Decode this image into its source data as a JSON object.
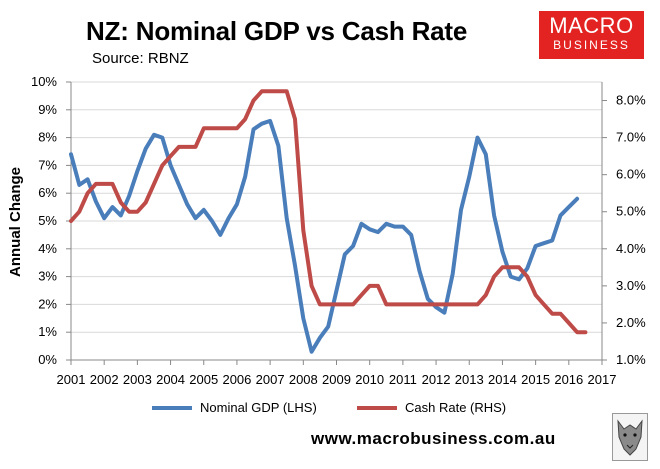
{
  "header": {
    "title": "NZ: Nominal GDP vs Cash Rate",
    "source": "Source: RBNZ"
  },
  "logo": {
    "line1": "MACRO",
    "line2": "BUSINESS",
    "bg_color": "#e32222"
  },
  "footer": {
    "website": "www.macrobusiness.com.au"
  },
  "colors": {
    "gdp": "#4a7ebb",
    "cash": "#be4b48",
    "grid": "#d9d9d9"
  },
  "chart_data": {
    "type": "line",
    "title": "NZ: Nominal GDP vs Cash Rate",
    "ylabel": "Annual Change",
    "xlim": [
      2001,
      2017
    ],
    "x_ticks": [
      "2001",
      "2002",
      "2003",
      "2004",
      "2005",
      "2006",
      "2007",
      "2008",
      "2009",
      "2010",
      "2011",
      "2012",
      "2013",
      "2014",
      "2015",
      "2016",
      "2017"
    ],
    "y_left": {
      "lim": [
        0,
        10
      ],
      "ticks": [
        "0%",
        "1%",
        "2%",
        "3%",
        "4%",
        "5%",
        "6%",
        "7%",
        "8%",
        "9%",
        "10%"
      ]
    },
    "y_right": {
      "lim": [
        1.0,
        8.5
      ],
      "ticks": [
        "1.0%",
        "2.0%",
        "3.0%",
        "4.0%",
        "5.0%",
        "6.0%",
        "7.0%",
        "8.0%"
      ]
    },
    "grid": true,
    "legend_position": "bottom",
    "series": [
      {
        "name": "Nominal GDP (LHS)",
        "axis": "left",
        "x": [
          2001.0,
          2001.25,
          2001.5,
          2001.75,
          2002.0,
          2002.25,
          2002.5,
          2002.75,
          2003.0,
          2003.25,
          2003.5,
          2003.75,
          2004.0,
          2004.25,
          2004.5,
          2004.75,
          2005.0,
          2005.25,
          2005.5,
          2005.75,
          2006.0,
          2006.25,
          2006.5,
          2006.75,
          2007.0,
          2007.25,
          2007.5,
          2007.75,
          2008.0,
          2008.25,
          2008.5,
          2008.75,
          2009.0,
          2009.25,
          2009.5,
          2009.75,
          2010.0,
          2010.25,
          2010.5,
          2010.75,
          2011.0,
          2011.25,
          2011.5,
          2011.75,
          2012.0,
          2012.25,
          2012.5,
          2012.75,
          2013.0,
          2013.25,
          2013.5,
          2013.75,
          2014.0,
          2014.25,
          2014.5,
          2014.75,
          2015.0,
          2015.25,
          2015.5,
          2015.75,
          2016.0,
          2016.25
        ],
        "y": [
          7.4,
          6.3,
          6.5,
          5.7,
          5.1,
          5.5,
          5.2,
          5.9,
          6.8,
          7.6,
          8.1,
          8.0,
          7.0,
          6.3,
          5.6,
          5.1,
          5.4,
          5.0,
          4.5,
          5.1,
          5.6,
          6.6,
          8.3,
          8.5,
          8.6,
          7.7,
          5.1,
          3.4,
          1.5,
          0.3,
          0.8,
          1.2,
          2.5,
          3.8,
          4.1,
          4.9,
          4.7,
          4.6,
          4.9,
          4.8,
          4.8,
          4.5,
          3.2,
          2.2,
          1.9,
          1.7,
          3.1,
          5.4,
          6.6,
          8.0,
          7.4,
          5.2,
          3.9,
          3.0,
          2.9,
          3.3,
          4.1,
          4.2,
          4.3,
          5.2,
          5.5,
          5.8
        ]
      },
      {
        "name": "Cash Rate (RHS)",
        "axis": "right",
        "x": [
          2001.0,
          2001.25,
          2001.5,
          2001.75,
          2002.0,
          2002.25,
          2002.5,
          2002.75,
          2003.0,
          2003.25,
          2003.5,
          2003.75,
          2004.0,
          2004.25,
          2004.5,
          2004.75,
          2005.0,
          2005.25,
          2005.5,
          2005.75,
          2006.0,
          2006.25,
          2006.5,
          2006.75,
          2007.0,
          2007.25,
          2007.5,
          2007.75,
          2008.0,
          2008.25,
          2008.5,
          2008.75,
          2009.0,
          2009.25,
          2009.5,
          2009.75,
          2010.0,
          2010.25,
          2010.5,
          2010.75,
          2011.0,
          2011.25,
          2011.5,
          2011.75,
          2012.0,
          2012.25,
          2012.5,
          2012.75,
          2013.0,
          2013.25,
          2013.5,
          2013.75,
          2014.0,
          2014.25,
          2014.5,
          2014.75,
          2015.0,
          2015.25,
          2015.5,
          2015.75,
          2016.0,
          2016.25,
          2016.5
        ],
        "y": [
          4.75,
          5.0,
          5.5,
          5.75,
          5.75,
          5.75,
          5.25,
          5.0,
          5.0,
          5.25,
          5.75,
          6.25,
          6.5,
          6.75,
          6.75,
          6.75,
          7.25,
          7.25,
          7.25,
          7.25,
          7.25,
          7.5,
          8.0,
          8.25,
          8.25,
          8.25,
          8.25,
          7.5,
          4.5,
          3.0,
          2.5,
          2.5,
          2.5,
          2.5,
          2.5,
          2.75,
          3.0,
          3.0,
          2.5,
          2.5,
          2.5,
          2.5,
          2.5,
          2.5,
          2.5,
          2.5,
          2.5,
          2.5,
          2.5,
          2.5,
          2.75,
          3.25,
          3.5,
          3.5,
          3.5,
          3.25,
          2.75,
          2.5,
          2.25,
          2.25,
          2.0,
          1.75,
          1.75
        ]
      }
    ]
  }
}
